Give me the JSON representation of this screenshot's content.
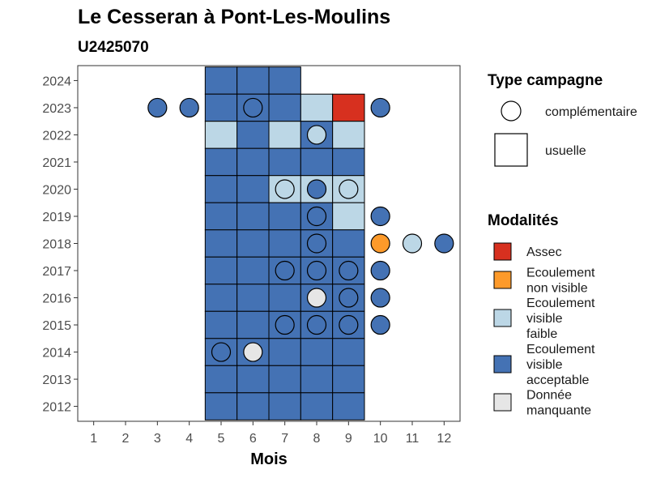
{
  "chart_data": {
    "type": "heatmap",
    "title": "Le Cesseran à Pont-Les-Moulins",
    "subtitle": "U2425070",
    "xlabel": "Mois",
    "ylabel": "",
    "x_ticks": [
      1,
      2,
      3,
      4,
      5,
      6,
      7,
      8,
      9,
      10,
      11,
      12
    ],
    "y_ticks": [
      2012,
      2013,
      2014,
      2015,
      2016,
      2017,
      2018,
      2019,
      2020,
      2021,
      2022,
      2023,
      2024
    ],
    "xlim": [
      0.5,
      12.5
    ],
    "ylim": [
      2011.45,
      2024.55
    ],
    "colors": {
      "Assec": "#d7301f",
      "Ecoulement non visible": "#fd9a2a",
      "Ecoulement visible faible": "#bcd7e6",
      "Ecoulement visible acceptable": "#4472b4",
      "Donnée manquante": "#e6e6e6"
    },
    "legend": {
      "campaign_title": "Type campagne",
      "campaign_items": [
        {
          "shape": "circle",
          "label": "complémentaire"
        },
        {
          "shape": "square",
          "label": "usuelle"
        }
      ],
      "mod_title": "Modalités",
      "mod_items": [
        {
          "key": "Assec",
          "lines": [
            "Assec"
          ]
        },
        {
          "key": "Ecoulement non visible",
          "lines": [
            "Ecoulement",
            "non visible"
          ]
        },
        {
          "key": "Ecoulement visible faible",
          "lines": [
            "Ecoulement",
            "visible",
            "faible"
          ]
        },
        {
          "key": "Ecoulement visible acceptable",
          "lines": [
            "Ecoulement",
            "visible",
            "acceptable"
          ]
        },
        {
          "key": "Donnée manquante",
          "lines": [
            "Donnée",
            "manquante"
          ]
        }
      ]
    },
    "usuelle": [
      {
        "month": 5,
        "year": 2024,
        "mod": "Ecoulement visible acceptable"
      },
      {
        "month": 6,
        "year": 2024,
        "mod": "Ecoulement visible acceptable"
      },
      {
        "month": 7,
        "year": 2024,
        "mod": "Ecoulement visible acceptable"
      },
      {
        "month": 5,
        "year": 2023,
        "mod": "Ecoulement visible acceptable"
      },
      {
        "month": 6,
        "year": 2023,
        "mod": "Ecoulement visible acceptable"
      },
      {
        "month": 7,
        "year": 2023,
        "mod": "Ecoulement visible acceptable"
      },
      {
        "month": 8,
        "year": 2023,
        "mod": "Ecoulement visible faible"
      },
      {
        "month": 9,
        "year": 2023,
        "mod": "Assec"
      },
      {
        "month": 5,
        "year": 2022,
        "mod": "Ecoulement visible faible"
      },
      {
        "month": 6,
        "year": 2022,
        "mod": "Ecoulement visible acceptable"
      },
      {
        "month": 7,
        "year": 2022,
        "mod": "Ecoulement visible faible"
      },
      {
        "month": 8,
        "year": 2022,
        "mod": "Ecoulement visible acceptable"
      },
      {
        "month": 9,
        "year": 2022,
        "mod": "Ecoulement visible faible"
      },
      {
        "month": 5,
        "year": 2021,
        "mod": "Ecoulement visible acceptable"
      },
      {
        "month": 6,
        "year": 2021,
        "mod": "Ecoulement visible acceptable"
      },
      {
        "month": 7,
        "year": 2021,
        "mod": "Ecoulement visible acceptable"
      },
      {
        "month": 8,
        "year": 2021,
        "mod": "Ecoulement visible acceptable"
      },
      {
        "month": 9,
        "year": 2021,
        "mod": "Ecoulement visible acceptable"
      },
      {
        "month": 5,
        "year": 2020,
        "mod": "Ecoulement visible acceptable"
      },
      {
        "month": 6,
        "year": 2020,
        "mod": "Ecoulement visible acceptable"
      },
      {
        "month": 7,
        "year": 2020,
        "mod": "Ecoulement visible faible"
      },
      {
        "month": 8,
        "year": 2020,
        "mod": "Ecoulement visible faible"
      },
      {
        "month": 9,
        "year": 2020,
        "mod": "Ecoulement visible faible"
      },
      {
        "month": 5,
        "year": 2019,
        "mod": "Ecoulement visible acceptable"
      },
      {
        "month": 6,
        "year": 2019,
        "mod": "Ecoulement visible acceptable"
      },
      {
        "month": 7,
        "year": 2019,
        "mod": "Ecoulement visible acceptable"
      },
      {
        "month": 8,
        "year": 2019,
        "mod": "Ecoulement visible acceptable"
      },
      {
        "month": 9,
        "year": 2019,
        "mod": "Ecoulement visible faible"
      },
      {
        "month": 5,
        "year": 2018,
        "mod": "Ecoulement visible acceptable"
      },
      {
        "month": 6,
        "year": 2018,
        "mod": "Ecoulement visible acceptable"
      },
      {
        "month": 7,
        "year": 2018,
        "mod": "Ecoulement visible acceptable"
      },
      {
        "month": 8,
        "year": 2018,
        "mod": "Ecoulement visible acceptable"
      },
      {
        "month": 9,
        "year": 2018,
        "mod": "Ecoulement visible acceptable"
      },
      {
        "month": 5,
        "year": 2017,
        "mod": "Ecoulement visible acceptable"
      },
      {
        "month": 6,
        "year": 2017,
        "mod": "Ecoulement visible acceptable"
      },
      {
        "month": 7,
        "year": 2017,
        "mod": "Ecoulement visible acceptable"
      },
      {
        "month": 8,
        "year": 2017,
        "mod": "Ecoulement visible acceptable"
      },
      {
        "month": 9,
        "year": 2017,
        "mod": "Ecoulement visible acceptable"
      },
      {
        "month": 5,
        "year": 2016,
        "mod": "Ecoulement visible acceptable"
      },
      {
        "month": 6,
        "year": 2016,
        "mod": "Ecoulement visible acceptable"
      },
      {
        "month": 7,
        "year": 2016,
        "mod": "Ecoulement visible acceptable"
      },
      {
        "month": 8,
        "year": 2016,
        "mod": "Ecoulement visible acceptable"
      },
      {
        "month": 9,
        "year": 2016,
        "mod": "Ecoulement visible acceptable"
      },
      {
        "month": 5,
        "year": 2015,
        "mod": "Ecoulement visible acceptable"
      },
      {
        "month": 6,
        "year": 2015,
        "mod": "Ecoulement visible acceptable"
      },
      {
        "month": 7,
        "year": 2015,
        "mod": "Ecoulement visible acceptable"
      },
      {
        "month": 8,
        "year": 2015,
        "mod": "Ecoulement visible acceptable"
      },
      {
        "month": 9,
        "year": 2015,
        "mod": "Ecoulement visible acceptable"
      },
      {
        "month": 5,
        "year": 2014,
        "mod": "Ecoulement visible acceptable"
      },
      {
        "month": 6,
        "year": 2014,
        "mod": "Ecoulement visible acceptable"
      },
      {
        "month": 7,
        "year": 2014,
        "mod": "Ecoulement visible acceptable"
      },
      {
        "month": 8,
        "year": 2014,
        "mod": "Ecoulement visible acceptable"
      },
      {
        "month": 9,
        "year": 2014,
        "mod": "Ecoulement visible acceptable"
      },
      {
        "month": 5,
        "year": 2013,
        "mod": "Ecoulement visible acceptable"
      },
      {
        "month": 6,
        "year": 2013,
        "mod": "Ecoulement visible acceptable"
      },
      {
        "month": 7,
        "year": 2013,
        "mod": "Ecoulement visible acceptable"
      },
      {
        "month": 8,
        "year": 2013,
        "mod": "Ecoulement visible acceptable"
      },
      {
        "month": 9,
        "year": 2013,
        "mod": "Ecoulement visible acceptable"
      },
      {
        "month": 5,
        "year": 2012,
        "mod": "Ecoulement visible acceptable"
      },
      {
        "month": 6,
        "year": 2012,
        "mod": "Ecoulement visible acceptable"
      },
      {
        "month": 7,
        "year": 2012,
        "mod": "Ecoulement visible acceptable"
      },
      {
        "month": 8,
        "year": 2012,
        "mod": "Ecoulement visible acceptable"
      },
      {
        "month": 9,
        "year": 2012,
        "mod": "Ecoulement visible acceptable"
      }
    ],
    "complementaire": [
      {
        "month": 3,
        "year": 2023,
        "mod": "Ecoulement visible acceptable"
      },
      {
        "month": 4,
        "year": 2023,
        "mod": "Ecoulement visible acceptable"
      },
      {
        "month": 6,
        "year": 2023,
        "mod": "Ecoulement visible acceptable"
      },
      {
        "month": 10,
        "year": 2023,
        "mod": "Ecoulement visible acceptable"
      },
      {
        "month": 8,
        "year": 2022,
        "mod": "Ecoulement visible faible"
      },
      {
        "month": 7,
        "year": 2020,
        "mod": "Ecoulement visible faible"
      },
      {
        "month": 8,
        "year": 2020,
        "mod": "Ecoulement visible acceptable"
      },
      {
        "month": 9,
        "year": 2020,
        "mod": "Ecoulement visible faible"
      },
      {
        "month": 8,
        "year": 2019,
        "mod": "Ecoulement visible acceptable"
      },
      {
        "month": 10,
        "year": 2019,
        "mod": "Ecoulement visible acceptable"
      },
      {
        "month": 8,
        "year": 2018,
        "mod": "Ecoulement visible acceptable"
      },
      {
        "month": 10,
        "year": 2018,
        "mod": "Ecoulement non visible"
      },
      {
        "month": 11,
        "year": 2018,
        "mod": "Ecoulement visible faible"
      },
      {
        "month": 12,
        "year": 2018,
        "mod": "Ecoulement visible acceptable"
      },
      {
        "month": 7,
        "year": 2017,
        "mod": "Ecoulement visible acceptable"
      },
      {
        "month": 8,
        "year": 2017,
        "mod": "Ecoulement visible acceptable"
      },
      {
        "month": 9,
        "year": 2017,
        "mod": "Ecoulement visible acceptable"
      },
      {
        "month": 10,
        "year": 2017,
        "mod": "Ecoulement visible acceptable"
      },
      {
        "month": 8,
        "year": 2016,
        "mod": "Donnée manquante"
      },
      {
        "month": 9,
        "year": 2016,
        "mod": "Ecoulement visible acceptable"
      },
      {
        "month": 10,
        "year": 2016,
        "mod": "Ecoulement visible acceptable"
      },
      {
        "month": 7,
        "year": 2015,
        "mod": "Ecoulement visible acceptable"
      },
      {
        "month": 8,
        "year": 2015,
        "mod": "Ecoulement visible acceptable"
      },
      {
        "month": 9,
        "year": 2015,
        "mod": "Ecoulement visible acceptable"
      },
      {
        "month": 10,
        "year": 2015,
        "mod": "Ecoulement visible acceptable"
      },
      {
        "month": 5,
        "year": 2014,
        "mod": "Ecoulement visible acceptable"
      },
      {
        "month": 6,
        "year": 2014,
        "mod": "Donnée manquante"
      }
    ]
  }
}
